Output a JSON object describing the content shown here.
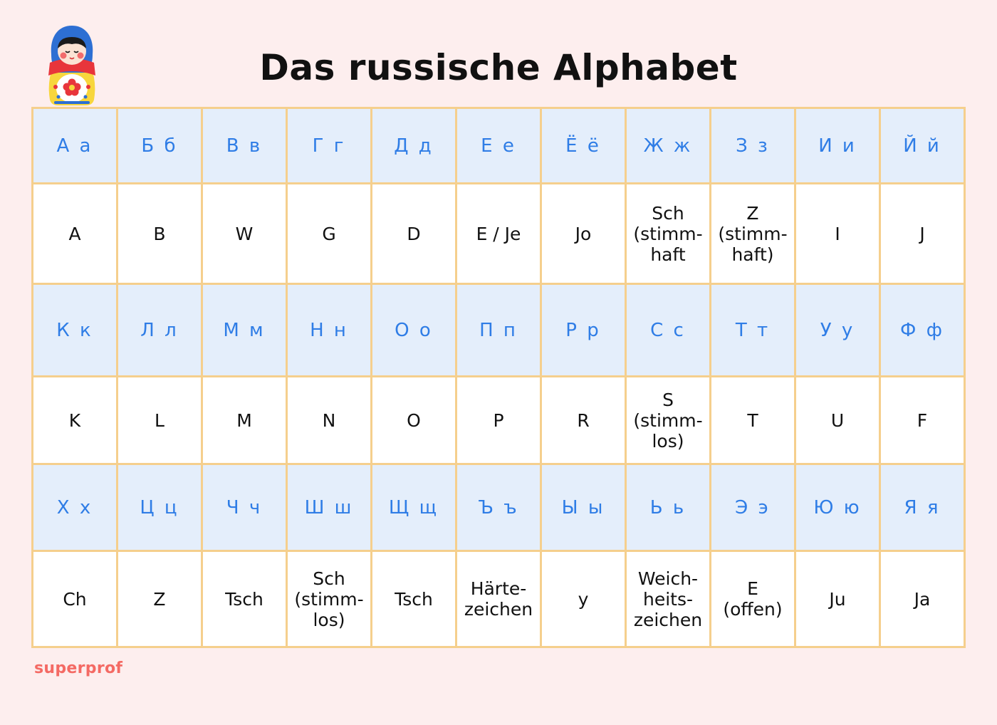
{
  "title": "Das russische Alphabet",
  "brand": "superprof",
  "colors": {
    "background": "#fdeeee",
    "grid_border": "#f5cf8d",
    "letter_row_bg": "#e4eefb",
    "letter_text": "#2f7de6",
    "brand": "#f46a64"
  },
  "decoration": {
    "icon": "matryoshka-doll-icon"
  },
  "sections": [
    {
      "letters": [
        "А а",
        "Б б",
        "В в",
        "Г г",
        "Д д",
        "Е е",
        "Ё ё",
        "Ж ж",
        "З з",
        "И и",
        "Й й"
      ],
      "translit": [
        "A",
        "B",
        "W",
        "G",
        "D",
        "E / Je",
        "Jo",
        "Sch\n(stimm-\nhaft",
        "Z\n(stimm-\nhaft)",
        "I",
        "J"
      ]
    },
    {
      "letters": [
        "К к",
        "Л л",
        "М м",
        "Н н",
        "О о",
        "П п",
        "Р р",
        "С с",
        "Т т",
        "У у",
        "Ф ф"
      ],
      "translit": [
        "K",
        "L",
        "M",
        "N",
        "O",
        "P",
        "R",
        "S\n(stimm-\nlos)",
        "T",
        "U",
        "F"
      ]
    },
    {
      "letters": [
        "Х х",
        "Ц ц",
        "Ч ч",
        "Ш ш",
        "Щ щ",
        "Ъ ъ",
        "Ы ы",
        "Ь ь",
        "Э э",
        "Ю ю",
        "Я я"
      ],
      "translit": [
        "Ch",
        "Z",
        "Tsch",
        "Sch\n(stimm-\nlos)",
        "Tsch",
        "Härte-\nzeichen",
        "y",
        "Weich-\nheits-\nzeichen",
        "E\n(offen)",
        "Ju",
        "Ja"
      ]
    }
  ]
}
